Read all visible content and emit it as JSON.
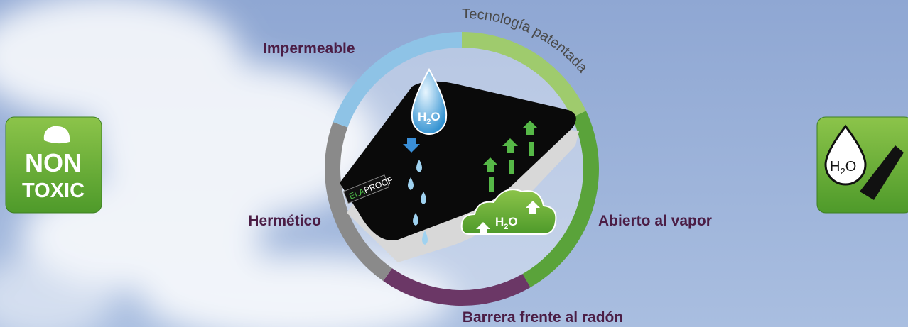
{
  "labels": {
    "top_left": "Impermeable",
    "top_right": "Tecnología patentada",
    "left": "Hermético",
    "right": "Abierto al vapor",
    "bottom": "Barrera frente al radón"
  },
  "badge_left": {
    "line1": "NON",
    "line2": "TOXIC"
  },
  "formula": {
    "h": "H",
    "sub": "2",
    "o": "O"
  },
  "brand": {
    "part1": "ELA",
    "part2": "PROOF"
  }
}
